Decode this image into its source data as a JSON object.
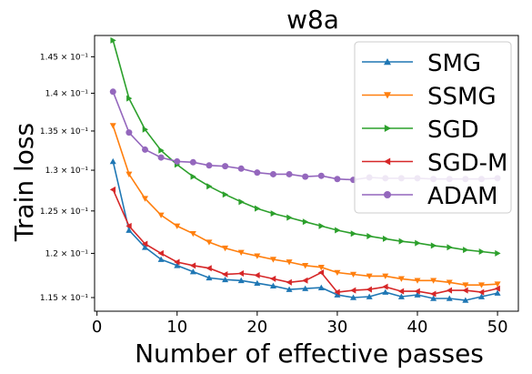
{
  "chart_data": {
    "type": "line",
    "title": "w8a",
    "xlabel": "Number of effective passes",
    "ylabel": "Train loss",
    "xlim": [
      -0.3,
      52.6
    ],
    "ylim": [
      0.1135,
      0.148
    ],
    "yscale": "log",
    "grid": false,
    "legend_position": "top-right",
    "xticks": [
      0,
      10,
      20,
      30,
      40,
      50
    ],
    "xtick_labels": [
      "0",
      "10",
      "20",
      "30",
      "40",
      "50"
    ],
    "yticks": [
      0.115,
      0.12,
      0.125,
      0.13,
      0.135,
      0.14,
      0.145
    ],
    "ytick_labels": [
      "1.15 × 10⁻¹",
      "1.2 × 10⁻¹",
      "1.25 × 10⁻¹",
      "1.3 × 10⁻¹",
      "1.35 × 10⁻¹",
      "1.4 × 10⁻¹",
      "1.45 × 10⁻¹"
    ],
    "x": [
      2,
      4,
      6,
      8,
      10,
      12,
      14,
      16,
      18,
      20,
      22,
      24,
      26,
      28,
      30,
      32,
      34,
      36,
      38,
      40,
      42,
      44,
      46,
      48,
      50
    ],
    "series": [
      {
        "name": "SMG",
        "color": "#1f77b4",
        "marker": "triangle-up",
        "values": [
          0.1311,
          0.1227,
          0.1207,
          0.1193,
          0.1186,
          0.1179,
          0.1172,
          0.117,
          0.1169,
          0.1166,
          0.1163,
          0.1159,
          0.116,
          0.1161,
          0.1153,
          0.115,
          0.1151,
          0.1156,
          0.1151,
          0.1153,
          0.1149,
          0.1149,
          0.1147,
          0.1151,
          0.1155
        ]
      },
      {
        "name": "SSMG",
        "color": "#ff7f0e",
        "marker": "triangle-down",
        "values": [
          0.1357,
          0.1295,
          0.1265,
          0.1245,
          0.1232,
          0.1223,
          0.1213,
          0.1206,
          0.1201,
          0.1197,
          0.1193,
          0.119,
          0.1186,
          0.1184,
          0.1178,
          0.1176,
          0.1174,
          0.1174,
          0.1171,
          0.1169,
          0.1169,
          0.1167,
          0.1164,
          0.1164,
          0.1165
        ]
      },
      {
        "name": "SGD",
        "color": "#2ca02c",
        "marker": "triangle-right",
        "values": [
          0.1473,
          0.1393,
          0.1352,
          0.1325,
          0.1307,
          0.1292,
          0.128,
          0.127,
          0.1261,
          0.1253,
          0.1247,
          0.1242,
          0.1237,
          0.1232,
          0.1227,
          0.1223,
          0.122,
          0.1217,
          0.1214,
          0.1212,
          0.1209,
          0.1207,
          0.1204,
          0.1202,
          0.12
        ]
      },
      {
        "name": "SGD-M",
        "color": "#d62728",
        "marker": "triangle-left",
        "values": [
          0.1276,
          0.1232,
          0.1211,
          0.12,
          0.119,
          0.1186,
          0.1183,
          0.1176,
          0.1177,
          0.1175,
          0.1171,
          0.1167,
          0.1169,
          0.1178,
          0.1156,
          0.1158,
          0.1159,
          0.1162,
          0.1157,
          0.1157,
          0.1154,
          0.1158,
          0.1158,
          0.1156,
          0.116
        ]
      },
      {
        "name": "ADAM",
        "color": "#9467bd",
        "marker": "circle",
        "values": [
          0.1402,
          0.1348,
          0.1326,
          0.1316,
          0.1311,
          0.131,
          0.1306,
          0.1305,
          0.1302,
          0.1297,
          0.1295,
          0.1295,
          0.1292,
          0.1293,
          0.1289,
          0.1288,
          0.1291,
          0.129,
          0.129,
          0.129,
          0.1289,
          0.1289,
          0.1289,
          0.1289,
          0.129
        ]
      }
    ]
  }
}
